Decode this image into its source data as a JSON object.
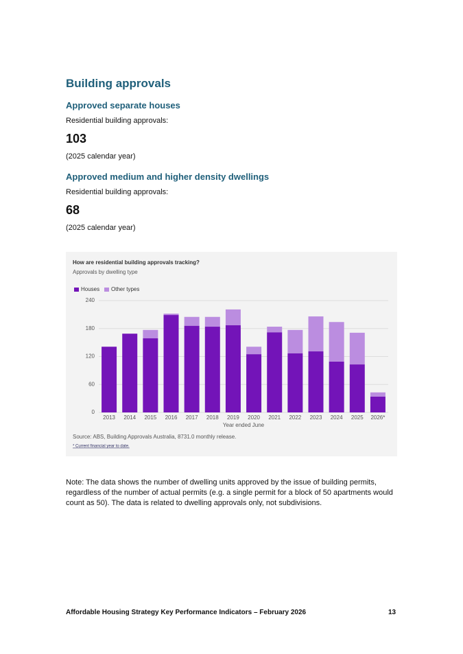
{
  "document": {
    "heading": "Building approvals",
    "section1": {
      "title": "Approved separate houses",
      "label": "Residential building approvals:",
      "value": "103",
      "period": "(2025 calendar year)"
    },
    "section2": {
      "title": "Approved medium and higher density dwellings",
      "label": "Residential building approvals:",
      "value": "68",
      "period": "(2025 calendar year)"
    },
    "note": "Note: The data shows the number of dwelling units approved by the issue of building permits, regardless of the number of actual permits (e.g. a single permit for a block of 50 apartments would count as 50). The data is related to dwelling approvals only, not subdivisions.",
    "footer": "Affordable Housing Strategy Key Performance Indicators – February 2026",
    "page_number": "13"
  },
  "chart_data": {
    "type": "stacked-bar",
    "title": "How are residential building approvals tracking?",
    "subtitle": "Approvals by dwelling type",
    "categories": [
      "2013",
      "2014",
      "2015",
      "2016",
      "2017",
      "2018",
      "2019",
      "2020",
      "2021",
      "2022",
      "2023",
      "2024",
      "2025",
      "2026*"
    ],
    "series": [
      {
        "name": "Houses",
        "color": "#7314b8",
        "values": [
          141,
          169,
          159,
          209,
          186,
          184,
          187,
          125,
          172,
          127,
          131,
          109,
          103,
          34
        ]
      },
      {
        "name": "Other types",
        "color": "#bb8de0",
        "values": [
          0,
          0,
          18,
          3,
          19,
          21,
          34,
          16,
          12,
          50,
          75,
          85,
          68,
          9
        ]
      }
    ],
    "ylim": [
      0,
      240
    ],
    "yticks": [
      0,
      60,
      120,
      180,
      240
    ],
    "grid": true,
    "x_label": "Year ended June",
    "source": "Source: ABS, Building Approvals Australia, 8731.0 monthly release.",
    "footnote": "* Current financial year to date."
  }
}
